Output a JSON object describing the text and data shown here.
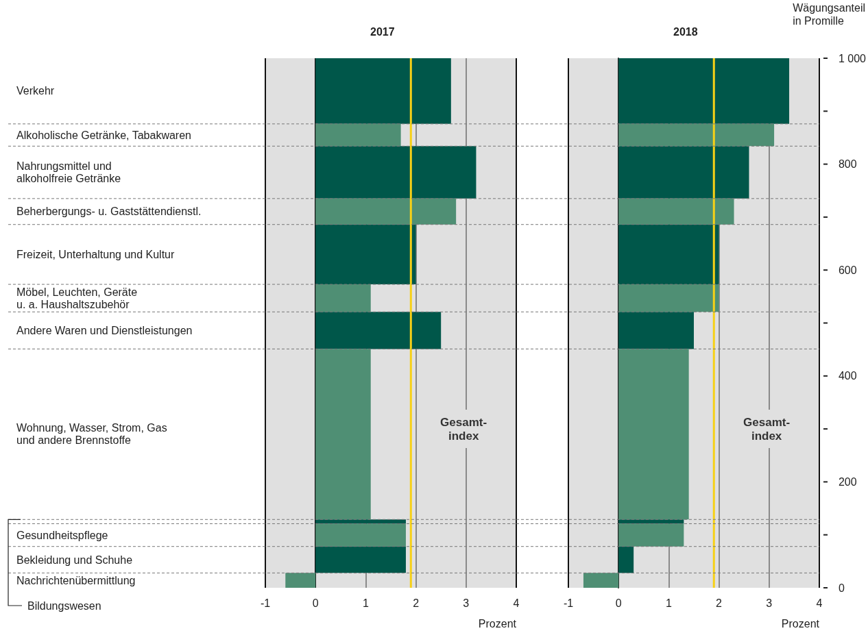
{
  "chart_data": [
    {
      "type": "histogram",
      "orientation": "horizontal",
      "title": "2017",
      "xlabel": "Prozent",
      "tick_labels": "x",
      "grid": "x",
      "categories": [
        "Verkehr",
        "Alkoholische Getränke, Tabakwaren",
        "Nahrungsmittel und\nalkoholfreie Getränke",
        "Beherbergungs- u. Gaststättendienstl.",
        "Freizeit, Unterhaltung und Kultur",
        "Möbel, Leuchten, Geräte\nu. a. Haushaltszubehör",
        "Andere Waren und Dienstleistungen",
        "Wohnung, Wasser, Strom, Gas\nund andere Brennstoffe",
        "Bildungswesen",
        "Gesundheitspflege",
        "Bekleidung und Schuhe",
        "Nachrichtenübermittlung"
      ],
      "bins": [
        1000,
        876,
        834,
        735,
        686,
        573,
        521,
        451,
        129,
        121,
        78,
        28,
        0
      ],
      "values": [
        2.7,
        1.7,
        3.2,
        2.8,
        2.0,
        1.1,
        2.5,
        1.1,
        1.8,
        1.8,
        1.8,
        -0.6
      ],
      "colors": [
        "#00574a",
        "#4f8f74",
        "#00574a",
        "#4f8f74",
        "#00574a",
        "#4f8f74",
        "#00574a",
        "#4f8f74",
        "#00574a",
        "#4f8f74",
        "#00574a",
        "#4f8f74"
      ],
      "xlim": [
        -1,
        4
      ],
      "xticks": [
        -1,
        0,
        1,
        2,
        3,
        4
      ],
      "ylim": [
        0,
        1000
      ],
      "ref_lines": [
        {
          "axis": "x",
          "value": 1.9,
          "label": "Gesamt-\nindex",
          "color": "#f7d117"
        }
      ]
    },
    {
      "type": "histogram",
      "orientation": "horizontal",
      "title": "2018",
      "xlabel": "Prozent",
      "ylabel": "Wägungsanteil\nin Promille",
      "grid": "x",
      "bins": [
        1000,
        876,
        834,
        735,
        686,
        573,
        521,
        451,
        129,
        121,
        78,
        28,
        0
      ],
      "values": [
        3.4,
        3.1,
        2.6,
        2.3,
        2.0,
        2.0,
        1.5,
        1.4,
        1.3,
        1.3,
        0.3,
        -0.7
      ],
      "colors": [
        "#00574a",
        "#4f8f74",
        "#00574a",
        "#4f8f74",
        "#00574a",
        "#4f8f74",
        "#00574a",
        "#4f8f74",
        "#00574a",
        "#4f8f74",
        "#00574a",
        "#4f8f74"
      ],
      "xlim": [
        -1,
        4
      ],
      "xticks": [
        -1,
        0,
        1,
        2,
        3,
        4
      ],
      "ylim": [
        0,
        1000
      ],
      "yticks": [
        0,
        {
          "value": 100,
          "label": null
        },
        200,
        {
          "value": 300,
          "label": null
        },
        400,
        {
          "value": 500,
          "label": null
        },
        600,
        {
          "value": 700,
          "label": null
        },
        800,
        {
          "value": 900,
          "label": null
        },
        {
          "value": 1000,
          "label": "1 000"
        }
      ],
      "ref_lines": [
        {
          "axis": "x",
          "value": 1.9,
          "label": "Gesamt-\nindex",
          "color": "#f7d117"
        }
      ]
    }
  ]
}
